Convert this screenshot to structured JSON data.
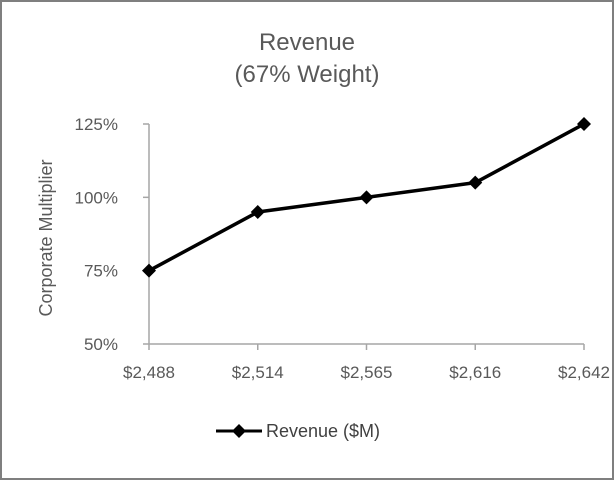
{
  "chart_data": {
    "type": "line",
    "title_line1": "Revenue",
    "title_line2": "(67% Weight)",
    "ylabel": "Corporate Multiplier",
    "xlabel": "",
    "categories": [
      "$2,488",
      "$2,514",
      "$2,565",
      "$2,616",
      "$2,642"
    ],
    "series": [
      {
        "name": "Revenue ($M)",
        "values": [
          75,
          95,
          100,
          105,
          125
        ]
      }
    ],
    "ylim": [
      50,
      125
    ],
    "yticks": [
      "50%",
      "75%",
      "100%",
      "125%"
    ],
    "ytick_values": [
      50,
      75,
      100,
      125
    ],
    "grid": false,
    "legend_position": "bottom",
    "series_color": "#000000",
    "marker": "diamond"
  }
}
